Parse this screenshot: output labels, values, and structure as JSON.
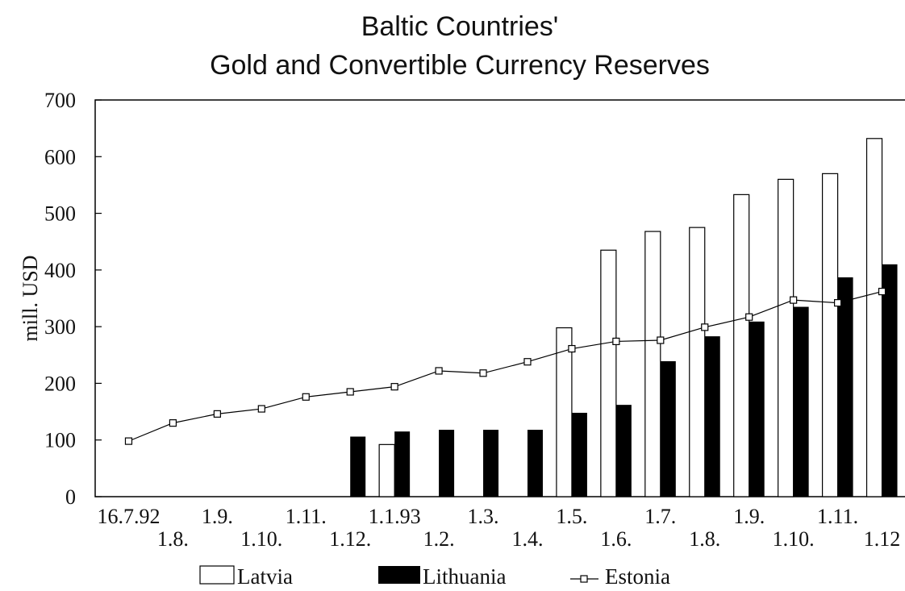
{
  "chart_data": {
    "type": "bar",
    "title": [
      "Baltic Countries'",
      "Gold and Convertible Currency Reserves"
    ],
    "ylabel": "mill. USD",
    "xlabel": "",
    "ylim": [
      0,
      700
    ],
    "yticks": [
      0,
      100,
      200,
      300,
      400,
      500,
      600,
      700
    ],
    "grid": false,
    "legend_position": "bottom",
    "categories": [
      "16.7.92",
      "1.8.",
      "1.9.",
      "1.10.",
      "1.11.",
      "1.12.",
      "1.1.93",
      "1.2.",
      "1.3.",
      "1.4.",
      "1.5.",
      "1.6.",
      "1.7.",
      "1.8.",
      "1.9.",
      "1.10.",
      "1.11.",
      "1.12"
    ],
    "series": [
      {
        "name": "Latvia",
        "type": "bar",
        "color": "#ffffff",
        "values": [
          null,
          null,
          null,
          null,
          null,
          null,
          92,
          null,
          null,
          null,
          298,
          435,
          468,
          475,
          533,
          560,
          570,
          632
        ]
      },
      {
        "name": "Lithuania",
        "type": "bar",
        "color": "#000000",
        "values": [
          null,
          null,
          null,
          null,
          null,
          106,
          115,
          118,
          118,
          118,
          148,
          162,
          239,
          283,
          309,
          335,
          387,
          410
        ]
      },
      {
        "name": "Estonia",
        "type": "line",
        "color": "#000000",
        "marker": "square",
        "values": [
          98,
          130,
          146,
          155,
          176,
          185,
          194,
          222,
          218,
          238,
          261,
          274,
          276,
          299,
          317,
          347,
          342,
          362
        ]
      }
    ]
  }
}
